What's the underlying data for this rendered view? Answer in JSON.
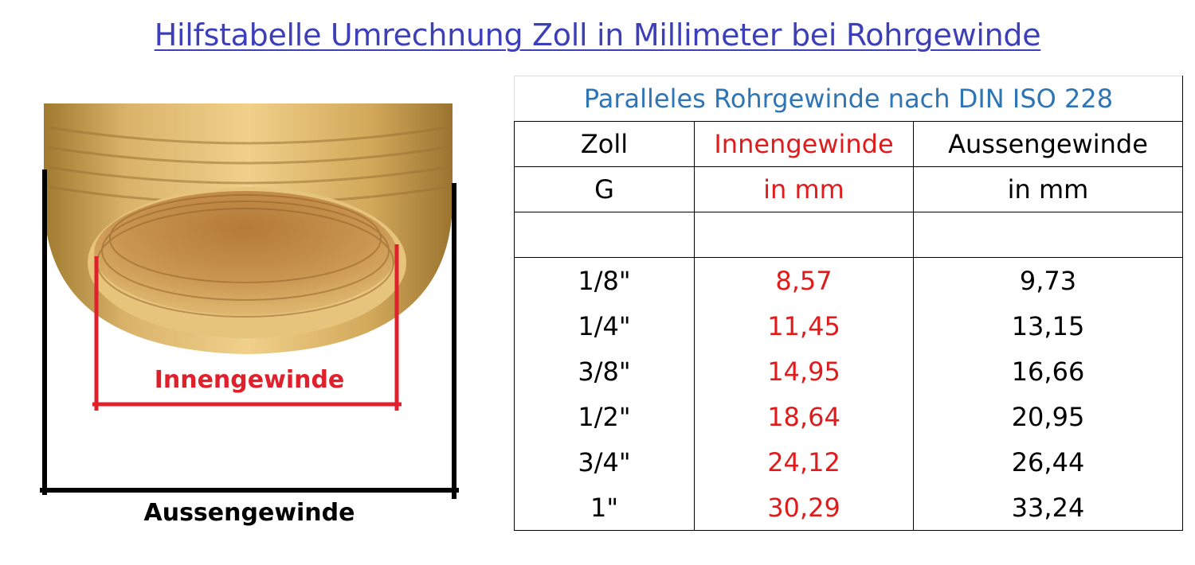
{
  "title": "Hilfstabelle Umrechnung Zoll in Millimeter bei Rohrgewinde",
  "figure": {
    "inner_label": "Innengewinde",
    "outer_label": "Aussengewinde",
    "colors": {
      "inner": "#e0202a",
      "outer": "#000000",
      "brass": "#c9a04a"
    }
  },
  "table": {
    "caption": "Paralleles Rohrgewinde nach DIN ISO 228",
    "headers": [
      [
        "Zoll",
        "Innengewinde",
        "Aussengewinde"
      ],
      [
        "G",
        "in mm",
        "in mm"
      ]
    ],
    "rows": [
      [
        "1/8\"",
        "8,57",
        "9,73"
      ],
      [
        "1/4\"",
        "11,45",
        "13,15"
      ],
      [
        "3/8\"",
        "14,95",
        "16,66"
      ],
      [
        "1/2\"",
        "18,64",
        "20,95"
      ],
      [
        "3/4\"",
        "24,12",
        "26,44"
      ],
      [
        "1\"",
        "30,29",
        "33,24"
      ]
    ],
    "colors": {
      "caption": "#2e75b6",
      "inner": "#e01b1b",
      "text": "#000000"
    }
  }
}
